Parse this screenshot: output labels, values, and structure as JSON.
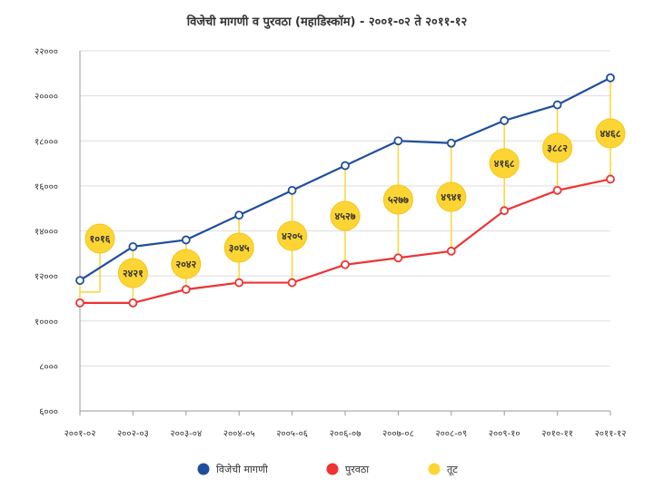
{
  "chart_data": {
    "type": "line",
    "title": "विजेची मागणी व पुरवठा (महाडिस्कॉम) - २००१-०२ ते २०११-१२",
    "categories": [
      "२००१-०२",
      "२००२-०३",
      "२००३-०४",
      "२००४-०५",
      "२००५-०६",
      "२००६-०७",
      "२००७-०८",
      "२००८-०९",
      "२००९-१०",
      "२०१०-११",
      "२०११-१२"
    ],
    "ylim": [
      6000,
      22000
    ],
    "yticks": [
      6000,
      8000,
      10000,
      12000,
      14000,
      16000,
      18000,
      20000,
      22000
    ],
    "ytick_labels": [
      "६०००",
      "८०००",
      "१००००",
      "१२०००",
      "१४०००",
      "१६०००",
      "१८०००",
      "२००००",
      "२२०००"
    ],
    "grid": "horizontal",
    "legend_position": "bottom",
    "series": [
      {
        "name": "विजेची मागणी",
        "color": "#1f4e9c",
        "values": [
          11800,
          13300,
          13600,
          14700,
          15800,
          16900,
          18000,
          17900,
          18900,
          19600,
          20800
        ]
      },
      {
        "name": "पुरवठा",
        "color": "#ee3333",
        "values": [
          10800,
          10800,
          11400,
          11700,
          11700,
          12500,
          12800,
          13100,
          14900,
          15800,
          16300
        ]
      }
    ],
    "gap": {
      "name": "तूट",
      "color": "#fcd535",
      "values": [
        1016,
        2421,
        2042,
        3045,
        4205,
        4527,
        5277,
        4941,
        4168,
        3882,
        4468
      ],
      "labels": [
        "१०१६",
        "२४२१",
        "२०४२",
        "३०४५",
        "४२०५",
        "४५२७",
        "५२७७",
        "४९४१",
        "४१६८",
        "३८८२",
        "४४६८"
      ]
    }
  }
}
